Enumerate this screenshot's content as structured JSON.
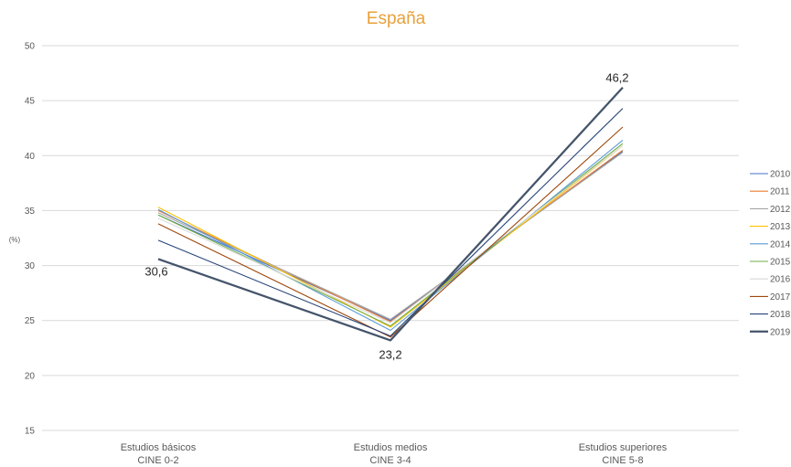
{
  "chart_data": {
    "type": "line",
    "title": "España",
    "ylabel": "(%)",
    "ylim": [
      15,
      50
    ],
    "yticks": [
      15,
      20,
      25,
      30,
      35,
      40,
      45,
      50
    ],
    "grid": true,
    "legend_position": "right",
    "categories": [
      [
        "Estudios básicos",
        "CINE 0-2"
      ],
      [
        "Estudios medios",
        "CINE 3-4"
      ],
      [
        "Estudios superiores",
        "CINE 5-8"
      ]
    ],
    "series": [
      {
        "name": "2010",
        "values": [
          34.6,
          25.0,
          40.4
        ],
        "color": "#4472C4",
        "bold": false
      },
      {
        "name": "2011",
        "values": [
          35.0,
          24.9,
          40.5
        ],
        "color": "#ED7D31",
        "bold": false
      },
      {
        "name": "2012",
        "values": [
          34.8,
          25.1,
          40.3
        ],
        "color": "#A5A5A5",
        "bold": false
      },
      {
        "name": "2013",
        "values": [
          35.3,
          24.4,
          40.9
        ],
        "color": "#FFC000",
        "bold": false
      },
      {
        "name": "2014",
        "values": [
          35.1,
          24.1,
          41.4
        ],
        "color": "#5B9BD5",
        "bold": false
      },
      {
        "name": "2015",
        "values": [
          34.6,
          24.5,
          41.1
        ],
        "color": "#70AD47",
        "bold": false
      },
      {
        "name": "2016",
        "values": [
          34.3,
          24.8,
          40.9
        ],
        "color": "#D9D9D9",
        "bold": false
      },
      {
        "name": "2017",
        "values": [
          33.8,
          23.5,
          42.6
        ],
        "color": "#9E480E",
        "bold": false
      },
      {
        "name": "2018",
        "values": [
          32.3,
          23.6,
          44.3
        ],
        "color": "#264478",
        "bold": false
      },
      {
        "name": "2019",
        "values": [
          30.6,
          23.2,
          46.2
        ],
        "color": "#44546A",
        "bold": true
      }
    ],
    "data_labels": [
      {
        "series": "2019",
        "index": 0,
        "text": "30,6",
        "position": "below"
      },
      {
        "series": "2019",
        "index": 1,
        "text": "23,2",
        "position": "below"
      },
      {
        "series": "2019",
        "index": 2,
        "text": "46,2",
        "position": "above"
      }
    ]
  }
}
